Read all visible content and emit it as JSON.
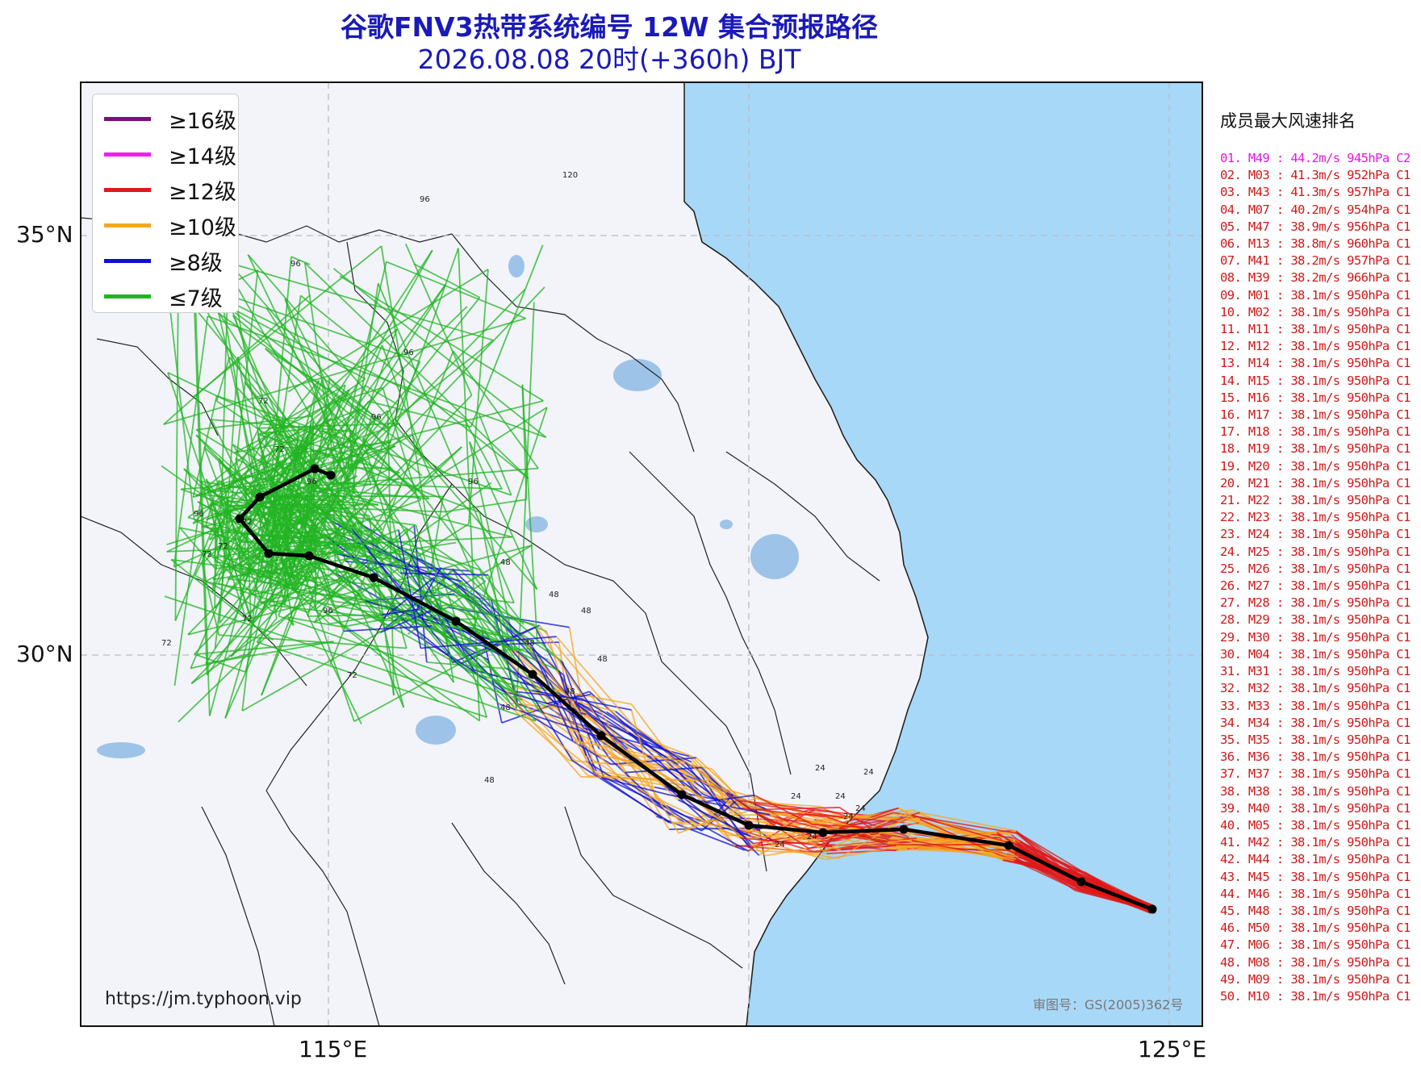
{
  "title": {
    "line1": "谷歌FNV3热带系统编号 12W 集合预报路径",
    "line2": "2026.08.08 20时(+360h) BJT"
  },
  "axes": {
    "lat_labels": [
      "35°N",
      "30°N"
    ],
    "lon_labels": [
      "115°E",
      "125°E"
    ]
  },
  "legend": [
    {
      "label": "≥16级",
      "color": "#7a1078"
    },
    {
      "label": "≥14级",
      "color": "#f020e8"
    },
    {
      "label": "≥12级",
      "color": "#e01818"
    },
    {
      "label": "≥10级",
      "color": "#f5a623"
    },
    {
      "label": "≥8级",
      "color": "#1010d0"
    },
    {
      "label": "≤7级",
      "color": "#22b422"
    }
  ],
  "colors": {
    "sea": "#a8d8f8",
    "land": "#f2f4fa",
    "track": "#000000",
    "grid": "#b8bcc8"
  },
  "ranking": {
    "title": "成员最大风速排名",
    "items": [
      "01. M49 : 44.2m/s 945hPa C2",
      "02. M03 : 41.3m/s 952hPa C1",
      "03. M43 : 41.3m/s 957hPa C1",
      "04. M07 : 40.2m/s 954hPa C1",
      "05. M47 : 38.9m/s 956hPa C1",
      "06. M13 : 38.8m/s 960hPa C1",
      "07. M41 : 38.2m/s 957hPa C1",
      "08. M39 : 38.2m/s 966hPa C1",
      "09. M01 : 38.1m/s 950hPa C1",
      "10. M02 : 38.1m/s 950hPa C1",
      "11. M11 : 38.1m/s 950hPa C1",
      "12. M12 : 38.1m/s 950hPa C1",
      "13. M14 : 38.1m/s 950hPa C1",
      "14. M15 : 38.1m/s 950hPa C1",
      "15. M16 : 38.1m/s 950hPa C1",
      "16. M17 : 38.1m/s 950hPa C1",
      "17. M18 : 38.1m/s 950hPa C1",
      "18. M19 : 38.1m/s 950hPa C1",
      "19. M20 : 38.1m/s 950hPa C1",
      "20. M21 : 38.1m/s 950hPa C1",
      "21. M22 : 38.1m/s 950hPa C1",
      "22. M23 : 38.1m/s 950hPa C1",
      "23. M24 : 38.1m/s 950hPa C1",
      "24. M25 : 38.1m/s 950hPa C1",
      "25. M26 : 38.1m/s 950hPa C1",
      "26. M27 : 38.1m/s 950hPa C1",
      "27. M28 : 38.1m/s 950hPa C1",
      "28. M29 : 38.1m/s 950hPa C1",
      "29. M30 : 38.1m/s 950hPa C1",
      "30. M04 : 38.1m/s 950hPa C1",
      "31. M31 : 38.1m/s 950hPa C1",
      "32. M32 : 38.1m/s 950hPa C1",
      "33. M33 : 38.1m/s 950hPa C1",
      "34. M34 : 38.1m/s 950hPa C1",
      "35. M35 : 38.1m/s 950hPa C1",
      "36. M36 : 38.1m/s 950hPa C1",
      "37. M37 : 38.1m/s 950hPa C1",
      "38. M38 : 38.1m/s 950hPa C1",
      "39. M40 : 38.1m/s 950hPa C1",
      "40. M05 : 38.1m/s 950hPa C1",
      "41. M42 : 38.1m/s 950hPa C1",
      "42. M44 : 38.1m/s 950hPa C1",
      "43. M45 : 38.1m/s 950hPa C1",
      "44. M46 : 38.1m/s 950hPa C1",
      "45. M48 : 38.1m/s 950hPa C1",
      "46. M50 : 38.1m/s 950hPa C1",
      "47. M06 : 38.1m/s 950hPa C1",
      "48. M08 : 38.1m/s 950hPa C1",
      "49. M09 : 38.1m/s 950hPa C1",
      "50. M10 : 38.1m/s 950hPa C1"
    ]
  },
  "hour_labels": [
    "24",
    "48",
    "72",
    "96",
    "120"
  ],
  "source_url": "https://jm.typhoon.vip",
  "approval_no": "审图号：GS(2005)362号"
}
